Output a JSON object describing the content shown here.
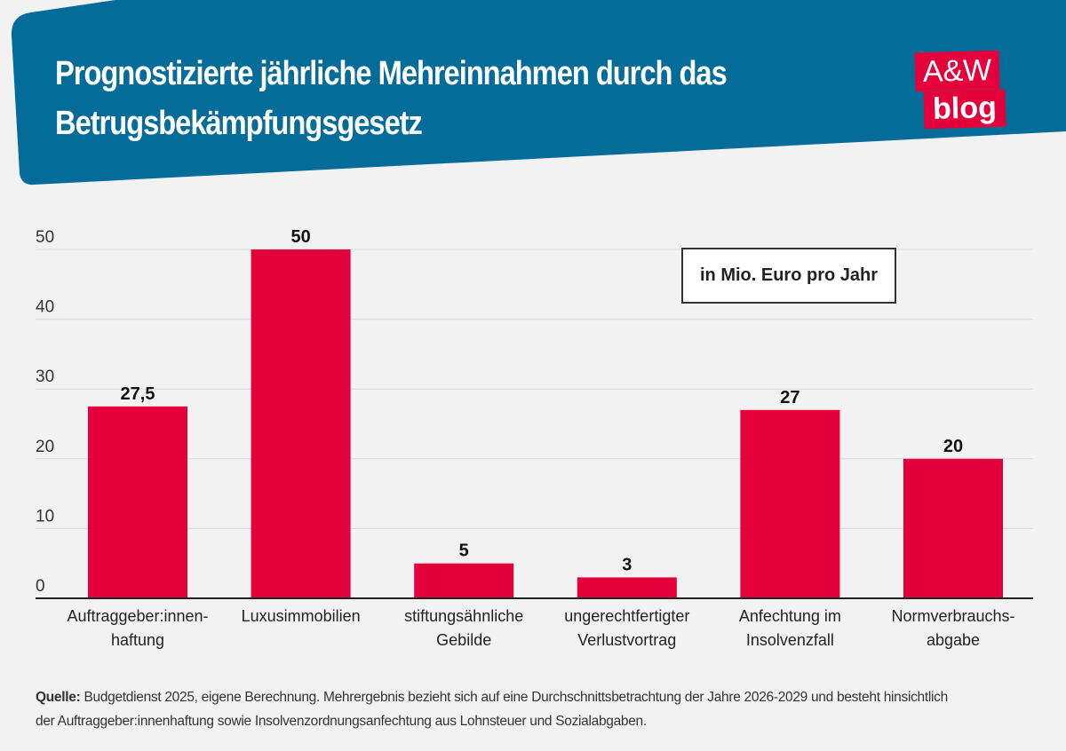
{
  "header": {
    "title_line1": "Prognostizierte jährliche Mehreinnahmen durch das",
    "title_line2": "Betrugsbekämpfungsgesetz",
    "logo_top": "A&W",
    "logo_bottom": "blog"
  },
  "colors": {
    "header_bg": "#046c99",
    "bar": "#e4003a",
    "background": "#f2f2f2"
  },
  "chart_data": {
    "type": "bar",
    "title": "Prognostizierte jährliche Mehreinnahmen durch das Betrugsbekämpfungsgesetz",
    "unit_label": "in Mio. Euro pro Jahr",
    "categories": [
      [
        "Auftraggeber:innen-",
        "haftung"
      ],
      [
        "Luxusimmobilien"
      ],
      [
        "stiftungsähnliche",
        "Gebilde"
      ],
      [
        "ungerechtfertigter",
        "Verlustvortrag"
      ],
      [
        "Anfechtung im",
        "Insolvenzfall"
      ],
      [
        "Normverbrauchs-",
        "abgabe"
      ]
    ],
    "values": [
      27.5,
      50,
      5,
      3,
      27,
      20
    ],
    "value_labels": [
      "27,5",
      "50",
      "5",
      "3",
      "27",
      "20"
    ],
    "ylim": [
      0,
      50
    ],
    "yticks": [
      0,
      10,
      20,
      30,
      40,
      50
    ],
    "grid": true
  },
  "footer": {
    "source_label": "Quelle:",
    "source_line1": " Budgetdienst 2025, eigene Berechnung. Mehrergebnis bezieht sich auf eine Durchschnittsbetrachtung der Jahre 2026-2029 und besteht hinsichtlich",
    "source_line2": "der Auftraggeber:innenhaftung sowie Insolvenzordnungsanfechtung aus Lohnsteuer und Sozialabgaben."
  }
}
